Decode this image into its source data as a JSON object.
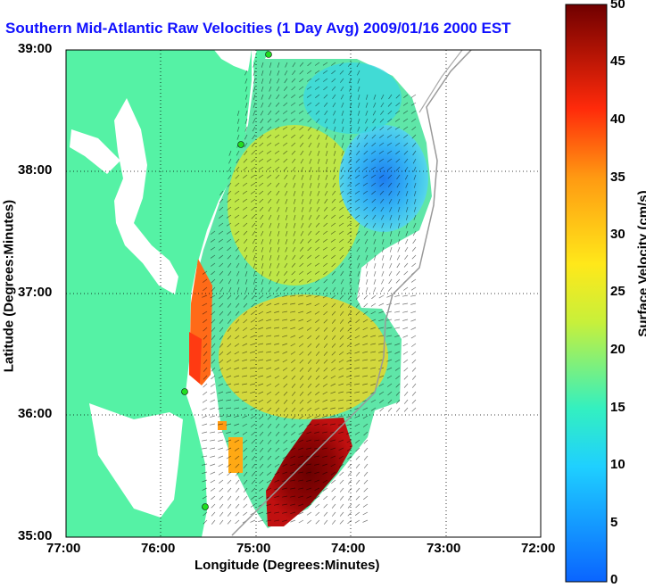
{
  "title": "Southern Mid-Atlantic Raw Velocities (1 Day Avg) 2009/01/16 2000 EST",
  "xlabel": "Longitude (Degrees:Minutes)",
  "ylabel": "Latitude (Degrees:Minutes)",
  "colorbar": {
    "label": "Surface Velocity (cm/s)",
    "ticks": [
      "50",
      "45",
      "40",
      "35",
      "30",
      "25",
      "20",
      "15",
      "10",
      "5",
      "0"
    ],
    "range": [
      0,
      50
    ]
  },
  "x_ticks": [
    "77:00",
    "76:00",
    "75:00",
    "74:00",
    "73:00",
    "72:00"
  ],
  "y_ticks": [
    "39:00",
    "38:00",
    "37:00",
    "36:00",
    "35:00"
  ],
  "map": {
    "lon_range": [
      -77,
      -72
    ],
    "lat_range": [
      35,
      39
    ],
    "land_color": "#55f2a5",
    "grid": "dotted"
  }
}
